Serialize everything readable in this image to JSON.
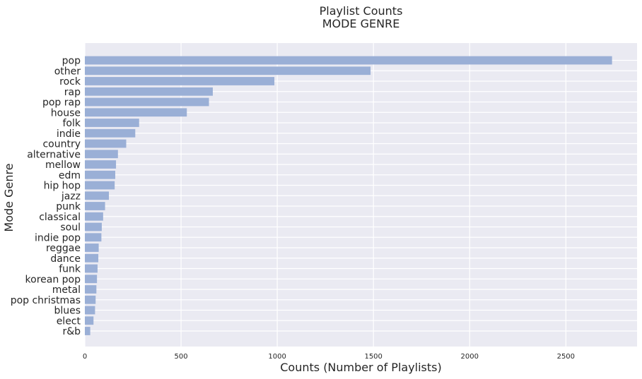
{
  "chart_data": {
    "type": "bar",
    "orientation": "horizontal",
    "title": "Playlist Counts",
    "subtitle": "MODE GENRE",
    "xlabel": "Counts (Number of Playlists)",
    "ylabel": "Mode Genre",
    "xlim": [
      0,
      2870
    ],
    "xticks": [
      0,
      500,
      1000,
      1500,
      2000,
      2500
    ],
    "grid": true,
    "bar_color": "#9aafd6",
    "background_color": "#eaeaf2",
    "categories": [
      "pop",
      "other",
      "rock",
      "rap",
      "pop rap",
      "house",
      "folk",
      "indie",
      "country",
      "alternative",
      "mellow",
      "edm",
      "hip hop",
      "jazz",
      "punk",
      "classical",
      "soul",
      "indie pop",
      "reggae",
      "dance",
      "funk",
      "korean pop",
      "metal",
      "pop christmas",
      "blues",
      "elect",
      "r&b"
    ],
    "values": [
      2740,
      1485,
      985,
      665,
      645,
      530,
      282,
      262,
      215,
      172,
      162,
      158,
      155,
      125,
      105,
      95,
      88,
      86,
      72,
      70,
      66,
      63,
      60,
      56,
      53,
      45,
      28
    ]
  }
}
